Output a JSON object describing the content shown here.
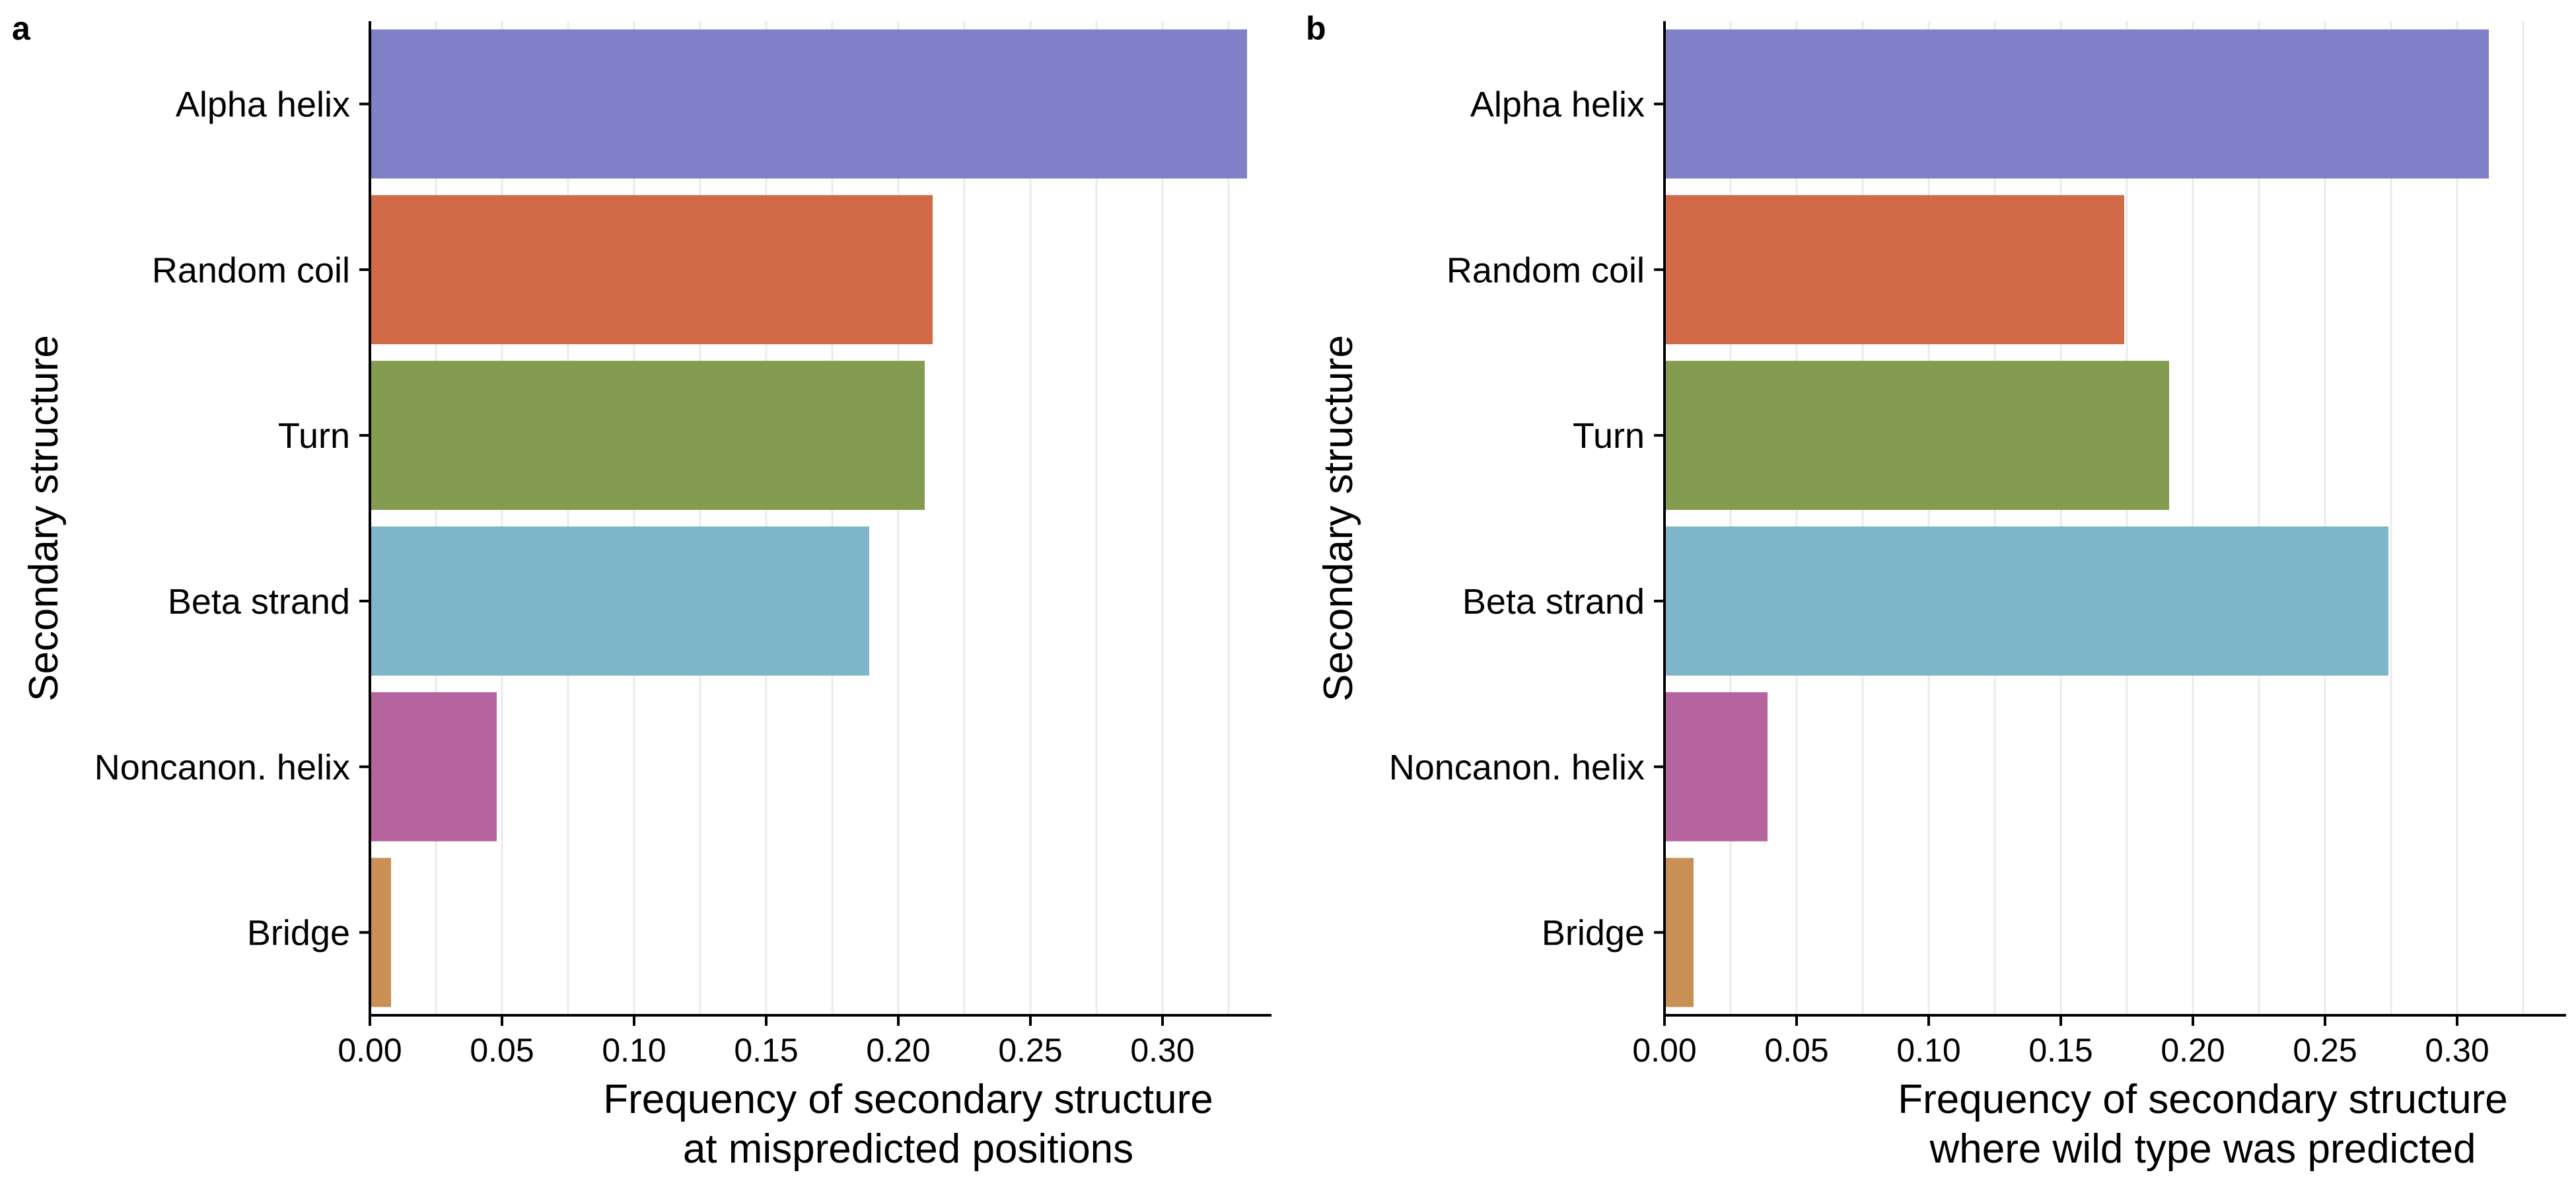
{
  "chart_data": [
    {
      "type": "bar",
      "orientation": "horizontal",
      "panel_label": "a",
      "categories": [
        "Alpha helix",
        "Random coil",
        "Turn",
        "Beta strand",
        "Noncanon. helix",
        "Bridge"
      ],
      "values": [
        0.332,
        0.213,
        0.21,
        0.189,
        0.048,
        0.008
      ],
      "xlabel": [
        "Frequency of secondary structure",
        "at mispredicted positions"
      ],
      "ylabel": "Secondary structure",
      "xlim": [
        0,
        0.34
      ],
      "xticks": [
        0,
        0.05,
        0.1,
        0.15,
        0.2,
        0.25,
        0.3
      ],
      "xtick_labels": [
        "0.00",
        "0.05",
        "0.10",
        "0.15",
        "0.20",
        "0.25",
        "0.30"
      ],
      "grid": "vertical major and minor lines"
    },
    {
      "type": "bar",
      "orientation": "horizontal",
      "panel_label": "b",
      "categories": [
        "Alpha helix",
        "Random coil",
        "Turn",
        "Beta strand",
        "Noncanon. helix",
        "Bridge"
      ],
      "values": [
        0.312,
        0.174,
        0.191,
        0.274,
        0.039,
        0.011
      ],
      "xlabel": [
        "Frequency of secondary structure",
        "where wild type was predicted"
      ],
      "ylabel": "Secondary structure",
      "xlim": [
        0,
        0.34
      ],
      "xticks": [
        0,
        0.05,
        0.1,
        0.15,
        0.2,
        0.25,
        0.3
      ],
      "xtick_labels": [
        "0.00",
        "0.05",
        "0.10",
        "0.15",
        "0.20",
        "0.25",
        "0.30"
      ],
      "grid": "vertical major and minor lines"
    }
  ],
  "colors": {
    "Alpha helix": "#7f80c8",
    "Random coil": "#d26a47",
    "Turn": "#839c50",
    "Beta strand": "#7fb5c9",
    "Noncanon. helix": "#b5649f",
    "Bridge": "#c98f55"
  }
}
